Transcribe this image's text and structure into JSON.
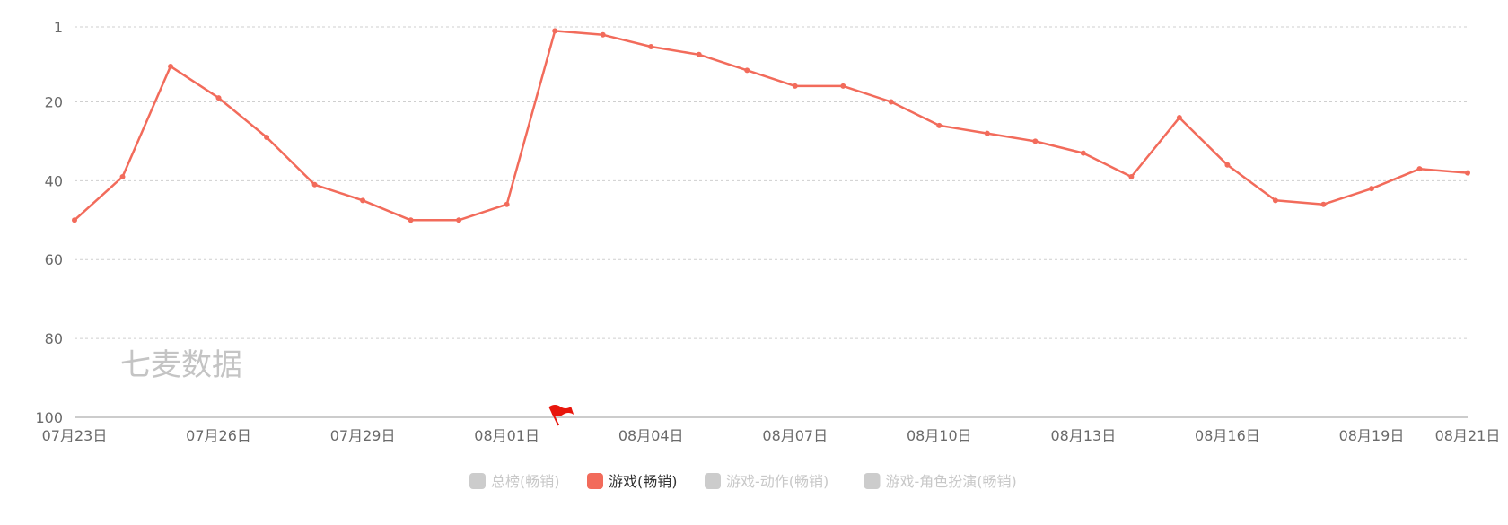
{
  "watermark": "七麦数据",
  "colors": {
    "series": "#f26b5b",
    "inactive": "#cccccc",
    "grid": "#cfcfcf",
    "axis": "#999999",
    "flag": "#e8160c"
  },
  "chart_data": {
    "type": "line",
    "x": [
      "07月23日",
      "07月24日",
      "07月25日",
      "07月26日",
      "07月27日",
      "07月28日",
      "07月29日",
      "07月30日",
      "07月31日",
      "08月01日",
      "08月02日",
      "08月03日",
      "08月04日",
      "08月05日",
      "08月06日",
      "08月07日",
      "08月08日",
      "08月09日",
      "08月10日",
      "08月11日",
      "08月12日",
      "08月13日",
      "08月14日",
      "08月15日",
      "08月16日",
      "08月17日",
      "08月18日",
      "08月19日",
      "08月20日",
      "08月21日"
    ],
    "x_tick_labels": [
      "07月23日",
      "07月26日",
      "07月29日",
      "08月01日",
      "08月04日",
      "08月07日",
      "08月10日",
      "08月13日",
      "08月16日",
      "08月19日",
      "08月21日"
    ],
    "y_tick_labels": [
      "1",
      "20",
      "40",
      "60",
      "80",
      "100"
    ],
    "ylim": [
      1,
      100
    ],
    "y_inverted": true,
    "grid": true,
    "series": [
      {
        "name": "游戏(畅销)",
        "values": [
          50,
          39,
          11,
          19,
          29,
          41,
          45,
          50,
          50,
          46,
          2,
          3,
          6,
          8,
          12,
          16,
          16,
          20,
          26,
          28,
          30,
          33,
          39,
          24,
          36,
          45,
          46,
          42,
          37,
          38
        ]
      }
    ],
    "event_marker": {
      "x": "08月02日",
      "icon": "flag-icon"
    },
    "legend": {
      "placement": "bottom-center",
      "items": [
        {
          "label": "总榜(畅销)",
          "active": false
        },
        {
          "label": "游戏(畅销)",
          "active": true
        },
        {
          "label": "游戏-动作(畅销)",
          "active": false
        },
        {
          "label": "游戏-角色扮演(畅销)",
          "active": false
        }
      ]
    }
  }
}
